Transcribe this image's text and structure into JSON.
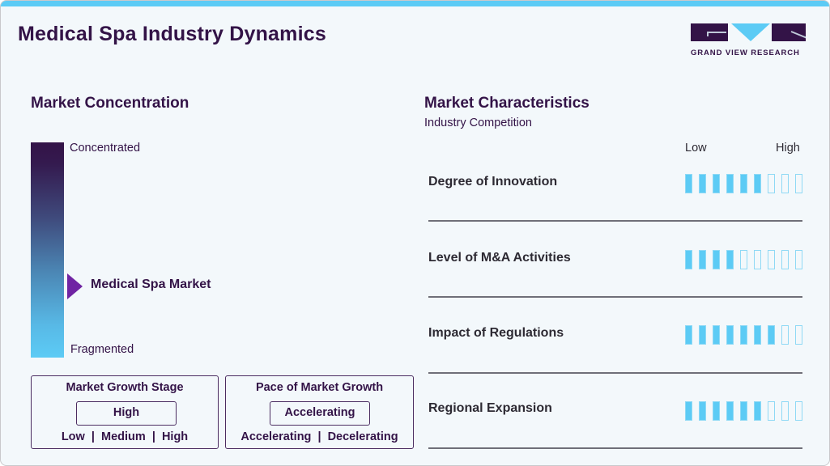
{
  "header": {
    "title": "Medical Spa Industry Dynamics",
    "logo_text": "GRAND VIEW RESEARCH"
  },
  "colors": {
    "primary_dark": "#331347",
    "accent_blue": "#5ccbf5",
    "marker_purple": "#7024a3",
    "background": "#f3f8fb"
  },
  "concentration": {
    "title": "Market Concentration",
    "top_label": "Concentrated",
    "bottom_label": "Fragmented",
    "marker_label": "Medical Spa Market"
  },
  "growth_stage": {
    "title": "Market Growth Stage",
    "value": "High",
    "scale": "Low  |  Medium  |  High"
  },
  "growth_pace": {
    "title": "Pace of Market Growth",
    "value": "Accelerating",
    "scale": "Accelerating  |  Decelerating"
  },
  "characteristics": {
    "title": "Market Characteristics",
    "subtitle": "Industry Competition",
    "low_label": "Low",
    "high_label": "High",
    "total_segments": 9,
    "rows": [
      {
        "label": "Degree of Innovation",
        "filled": 6
      },
      {
        "label": "Level of M&A Activities",
        "filled": 4
      },
      {
        "label": "Impact of Regulations",
        "filled": 7
      },
      {
        "label": "Regional Expansion",
        "filled": 6
      }
    ]
  }
}
